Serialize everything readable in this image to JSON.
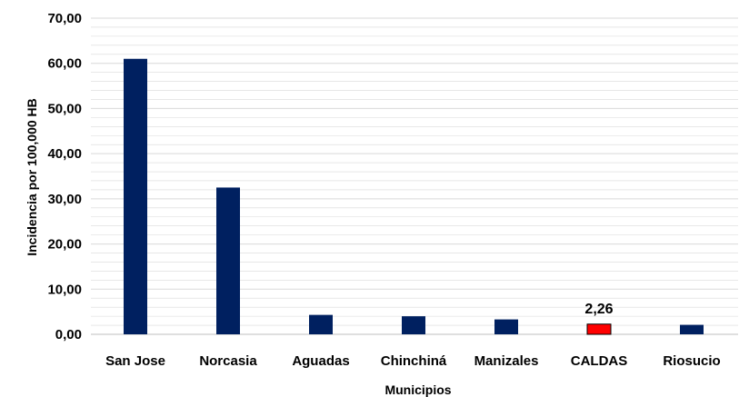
{
  "chart_data": {
    "type": "bar",
    "title": "",
    "xlabel": "Municipios",
    "ylabel": "Incidencia por 100,000 HB",
    "categories": [
      "San Jose",
      "Norcasia",
      "Aguadas",
      "Chinchiná",
      "Manizales",
      "CALDAS",
      "Riosucio"
    ],
    "values": [
      61.0,
      32.5,
      4.3,
      4.0,
      3.3,
      2.26,
      2.1
    ],
    "ylim": [
      0,
      70
    ],
    "yticks": [
      "0,00",
      "10,00",
      "20,00",
      "30,00",
      "40,00",
      "50,00",
      "60,00",
      "70,00"
    ],
    "grid": true,
    "data_labels": [
      {
        "category": "CALDAS",
        "text": "2,26"
      }
    ],
    "colors": {
      "bar": "#002060",
      "highlight": "#ff0000",
      "highlight_category": "CALDAS",
      "grid": "#d9d9d9",
      "axis": "#bfbfbf"
    }
  }
}
